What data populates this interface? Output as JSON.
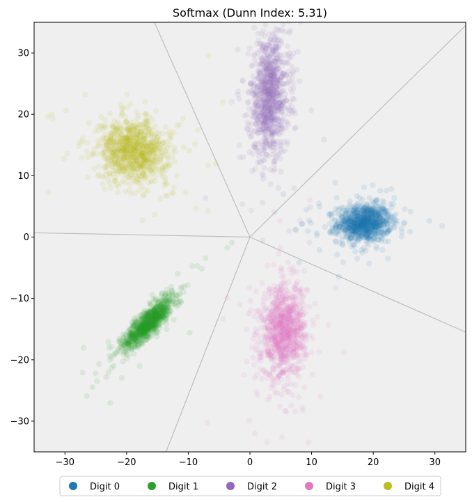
{
  "chart_data": {
    "type": "scatter",
    "title": "Softmax (Dunn Index: 5.31)",
    "xlabel": "",
    "ylabel": "",
    "xlim": [
      -35,
      35
    ],
    "ylim": [
      -35,
      35
    ],
    "xticks": [
      -30,
      -20,
      -10,
      0,
      10,
      20,
      30
    ],
    "yticks": [
      -30,
      -20,
      -10,
      0,
      10,
      20,
      30
    ],
    "xtick_labels": [
      "−30",
      "−20",
      "−10",
      "0",
      "10",
      "20",
      "30"
    ],
    "ytick_labels": [
      "−30",
      "−20",
      "−10",
      "0",
      "10",
      "20",
      "30"
    ],
    "grid": false,
    "legend_position": "bottom-center",
    "background_color": "#efefef",
    "point_alpha": 0.1,
    "decision_boundary": {
      "color": "#bdbdbd",
      "center": [
        0,
        0
      ],
      "rays": [
        {
          "from": [
            0,
            0
          ],
          "to": [
            -15.5,
            35
          ]
        },
        {
          "from": [
            0,
            0
          ],
          "to": [
            35,
            34.5
          ]
        },
        {
          "from": [
            0,
            0
          ],
          "to": [
            35,
            -15.5
          ]
        },
        {
          "from": [
            0,
            0
          ],
          "to": [
            -13.6,
            -35
          ]
        },
        {
          "from": [
            0,
            0
          ],
          "to": [
            -35,
            0.7
          ]
        }
      ]
    },
    "series": [
      {
        "name": "Digit 0",
        "color": "#1f77b4",
        "summary": {
          "center": [
            18.5,
            2.3
          ],
          "sd": [
            2.2,
            1.5
          ],
          "corr": 0.05,
          "n": 900,
          "outliers": 60
        }
      },
      {
        "name": "Digit 1",
        "color": "#2ca02c",
        "summary": {
          "center": [
            -16.5,
            -14
          ],
          "sd": [
            2.0,
            2.1
          ],
          "corr": 0.85,
          "n": 900,
          "outliers": 60
        }
      },
      {
        "name": "Digit 2",
        "color": "#9467bd",
        "summary": {
          "center": [
            3.2,
            23
          ],
          "sd": [
            1.6,
            5.0
          ],
          "corr": 0.1,
          "n": 900,
          "outliers": 60
        }
      },
      {
        "name": "Digit 3",
        "color": "#e377c2",
        "summary": {
          "center": [
            5.5,
            -15.5
          ],
          "sd": [
            1.8,
            3.8
          ],
          "corr": 0.1,
          "n": 900,
          "outliers": 60
        }
      },
      {
        "name": "Digit 4",
        "color": "#bcbd22",
        "summary": {
          "center": [
            -19,
            14
          ],
          "sd": [
            2.8,
            2.5
          ],
          "corr": -0.1,
          "n": 900,
          "outliers": 60
        }
      }
    ]
  }
}
